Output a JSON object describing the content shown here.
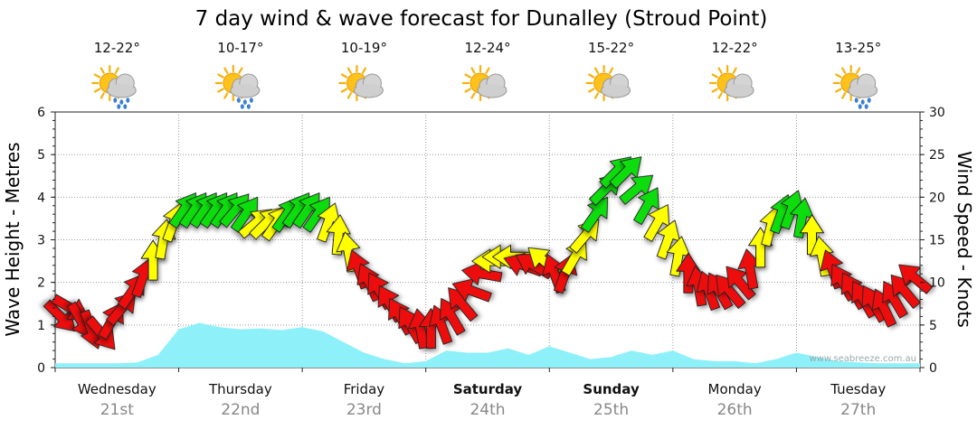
{
  "chart_data": {
    "type": "line",
    "title": "7 day wind & wave forecast for Dunalley (Stroud Point)",
    "ylabel_left": "Wave Height - Metres",
    "ylabel_right": "Wind Speed - Knots",
    "y_left_lim": [
      0,
      6
    ],
    "y_left_ticks": [
      "0",
      "1",
      "2",
      "3",
      "4",
      "5",
      "6"
    ],
    "y_right_lim": [
      0,
      30
    ],
    "y_right_ticks": [
      "0",
      "5",
      "10",
      "15",
      "20",
      "25",
      "30"
    ],
    "x_lim": [
      0,
      168
    ],
    "credit": "www.seabreeze.com.au",
    "days": [
      {
        "name": "Wednesday",
        "date": "21st",
        "temp": "12-22°",
        "icon": "sun-cloud-rain-icon",
        "bold": false
      },
      {
        "name": "Thursday",
        "date": "22nd",
        "temp": "10-17°",
        "icon": "sun-cloud-rain-icon",
        "bold": false
      },
      {
        "name": "Friday",
        "date": "23rd",
        "temp": "10-19°",
        "icon": "sun-cloud-icon",
        "bold": false
      },
      {
        "name": "Saturday",
        "date": "24th",
        "temp": "12-24°",
        "icon": "sun-cloud-icon",
        "bold": true
      },
      {
        "name": "Sunday",
        "date": "25th",
        "temp": "15-22°",
        "icon": "sun-cloud-icon",
        "bold": true
      },
      {
        "name": "Monday",
        "date": "26th",
        "temp": "12-22°",
        "icon": "sun-cloud-icon",
        "bold": false
      },
      {
        "name": "Tuesday",
        "date": "27th",
        "temp": "13-25°",
        "icon": "sun-cloud-rain-icon",
        "bold": false
      }
    ],
    "series": [
      {
        "name": "Wave Height",
        "units": "m",
        "color": "#8ef0f8",
        "x": [
          0,
          6,
          12,
          16,
          20,
          24,
          28,
          32,
          36,
          40,
          44,
          48,
          52,
          56,
          60,
          64,
          68,
          72,
          76,
          80,
          84,
          88,
          92,
          96,
          100,
          104,
          108,
          112,
          116,
          120,
          124,
          128,
          132,
          136,
          140,
          144,
          148,
          152,
          156,
          160,
          164,
          168
        ],
        "values": [
          0.1,
          0.1,
          0.1,
          0.12,
          0.3,
          0.9,
          1.05,
          0.95,
          0.9,
          0.92,
          0.88,
          0.95,
          0.85,
          0.6,
          0.35,
          0.2,
          0.1,
          0.15,
          0.4,
          0.35,
          0.35,
          0.45,
          0.3,
          0.5,
          0.35,
          0.2,
          0.25,
          0.4,
          0.3,
          0.4,
          0.2,
          0.15,
          0.15,
          0.1,
          0.2,
          0.35,
          0.25,
          0.15,
          0.12,
          0.1,
          0.1,
          0.1
        ]
      },
      {
        "name": "Wind Speed",
        "units": "knots",
        "arrows": [
          {
            "x": 1,
            "knots": 6,
            "dir": 315
          },
          {
            "x": 3,
            "knots": 7,
            "dir": 300
          },
          {
            "x": 5,
            "knots": 5.5,
            "dir": 330
          },
          {
            "x": 7,
            "knots": 4.5,
            "dir": 340
          },
          {
            "x": 9,
            "knots": 4,
            "dir": 320
          },
          {
            "x": 11,
            "knots": 5.5,
            "dir": 210
          },
          {
            "x": 13,
            "knots": 7,
            "dir": 220
          },
          {
            "x": 15,
            "knots": 9,
            "dir": 215
          },
          {
            "x": 17,
            "knots": 10.5,
            "dir": 200
          },
          {
            "x": 19,
            "knots": 12.5,
            "dir": 180
          },
          {
            "x": 21,
            "knots": 15,
            "dir": 190
          },
          {
            "x": 23,
            "knots": 17,
            "dir": 200
          },
          {
            "x": 25,
            "knots": 18.5,
            "dir": 215
          },
          {
            "x": 27,
            "knots": 18.5,
            "dir": 215
          },
          {
            "x": 29,
            "knots": 18.5,
            "dir": 215
          },
          {
            "x": 31,
            "knots": 18.5,
            "dir": 215
          },
          {
            "x": 33,
            "knots": 18.5,
            "dir": 215
          },
          {
            "x": 35,
            "knots": 18.5,
            "dir": 220
          },
          {
            "x": 37,
            "knots": 18,
            "dir": 215
          },
          {
            "x": 39,
            "knots": 17,
            "dir": 230
          },
          {
            "x": 41,
            "knots": 17,
            "dir": 225
          },
          {
            "x": 43,
            "knots": 17,
            "dir": 215
          },
          {
            "x": 45,
            "knots": 18,
            "dir": 215
          },
          {
            "x": 47,
            "knots": 18.5,
            "dir": 215
          },
          {
            "x": 49,
            "knots": 18.5,
            "dir": 215
          },
          {
            "x": 51,
            "knots": 18,
            "dir": 215
          },
          {
            "x": 53,
            "knots": 17,
            "dir": 200
          },
          {
            "x": 55,
            "knots": 15.5,
            "dir": 185
          },
          {
            "x": 57,
            "knots": 13.5,
            "dir": 170
          },
          {
            "x": 59,
            "knots": 11.5,
            "dir": 160
          },
          {
            "x": 61,
            "knots": 10,
            "dir": 155
          },
          {
            "x": 63,
            "knots": 9,
            "dir": 150
          },
          {
            "x": 65,
            "knots": 7.5,
            "dir": 150
          },
          {
            "x": 67,
            "knots": 6,
            "dir": 150
          },
          {
            "x": 69,
            "knots": 5,
            "dir": 150
          },
          {
            "x": 71,
            "knots": 4.5,
            "dir": 170
          },
          {
            "x": 73,
            "knots": 4.5,
            "dir": 180
          },
          {
            "x": 75,
            "knots": 5,
            "dir": 160
          },
          {
            "x": 77,
            "knots": 6,
            "dir": 150
          },
          {
            "x": 79,
            "knots": 7.5,
            "dir": 140
          },
          {
            "x": 81,
            "knots": 9,
            "dir": 110
          },
          {
            "x": 83,
            "knots": 11,
            "dir": 100
          },
          {
            "x": 85,
            "knots": 12.5,
            "dir": 90
          },
          {
            "x": 87,
            "knots": 13,
            "dir": 90
          },
          {
            "x": 89,
            "knots": 13,
            "dir": 90
          },
          {
            "x": 91,
            "knots": 12,
            "dir": 110
          },
          {
            "x": 93,
            "knots": 12,
            "dir": 120
          },
          {
            "x": 95,
            "knots": 12.5,
            "dir": 130
          },
          {
            "x": 97,
            "knots": 11,
            "dir": 160
          },
          {
            "x": 99,
            "knots": 11,
            "dir": 200
          },
          {
            "x": 101,
            "knots": 13,
            "dir": 210
          },
          {
            "x": 103,
            "knots": 15.5,
            "dir": 220
          },
          {
            "x": 105,
            "knots": 18,
            "dir": 215
          },
          {
            "x": 107,
            "knots": 21,
            "dir": 225
          },
          {
            "x": 109,
            "knots": 23,
            "dir": 225
          },
          {
            "x": 111,
            "knots": 23,
            "dir": 225
          },
          {
            "x": 113,
            "knots": 21,
            "dir": 230
          },
          {
            "x": 115,
            "knots": 19,
            "dir": 210
          },
          {
            "x": 117,
            "knots": 17,
            "dir": 210
          },
          {
            "x": 119,
            "knots": 15,
            "dir": 200
          },
          {
            "x": 121,
            "knots": 13,
            "dir": 190
          },
          {
            "x": 123,
            "knots": 11,
            "dir": 180
          },
          {
            "x": 125,
            "knots": 9.5,
            "dir": 170
          },
          {
            "x": 127,
            "knots": 9,
            "dir": 160
          },
          {
            "x": 129,
            "knots": 9,
            "dir": 150
          },
          {
            "x": 131,
            "knots": 9,
            "dir": 140
          },
          {
            "x": 133,
            "knots": 10,
            "dir": 140
          },
          {
            "x": 135,
            "knots": 11.5,
            "dir": 170
          },
          {
            "x": 137,
            "knots": 14,
            "dir": 180
          },
          {
            "x": 139,
            "knots": 16.5,
            "dir": 195
          },
          {
            "x": 141,
            "knots": 18,
            "dir": 200
          },
          {
            "x": 143,
            "knots": 18.5,
            "dir": 200
          },
          {
            "x": 145,
            "knots": 17.5,
            "dir": 190
          },
          {
            "x": 147,
            "knots": 15.5,
            "dir": 180
          },
          {
            "x": 149,
            "knots": 13,
            "dir": 170
          },
          {
            "x": 151,
            "knots": 11.5,
            "dir": 160
          },
          {
            "x": 153,
            "knots": 10,
            "dir": 150
          },
          {
            "x": 155,
            "knots": 9,
            "dir": 150
          },
          {
            "x": 157,
            "knots": 8,
            "dir": 150
          },
          {
            "x": 159,
            "knots": 7.5,
            "dir": 150
          },
          {
            "x": 161,
            "knots": 7,
            "dir": 155
          },
          {
            "x": 163,
            "knots": 8,
            "dir": 150
          },
          {
            "x": 165,
            "knots": 9,
            "dir": 140
          },
          {
            "x": 167,
            "knots": 10.5,
            "dir": 130
          }
        ]
      }
    ],
    "color_scale": [
      {
        "max_knots": 12,
        "color": "#ee1111"
      },
      {
        "max_knots": 17,
        "color": "#ffff00"
      },
      {
        "max_knots": 40,
        "color": "#11dd11"
      }
    ]
  }
}
